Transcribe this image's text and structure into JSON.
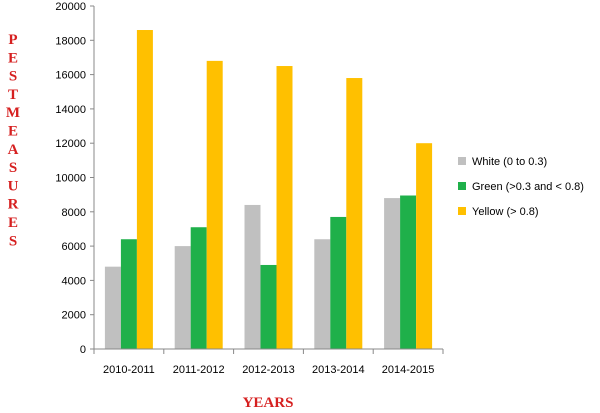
{
  "chart_data": {
    "type": "bar",
    "title": "",
    "xlabel": "YEARS",
    "ylabel": "PESTMEASURES",
    "categories": [
      "2010-2011",
      "2011-2012",
      "2012-2013",
      "2013-2014",
      "2014-2015"
    ],
    "series": [
      {
        "name": "White  (0 to  0.3)",
        "color": "#c0c0c0",
        "values": [
          4800,
          6000,
          8400,
          6400,
          8800
        ]
      },
      {
        "name": "Green (>0.3 and < 0.8)",
        "color": "#1fb04a",
        "values": [
          6400,
          7100,
          4900,
          7700,
          8950
        ]
      },
      {
        "name": "Yellow (> 0.8)",
        "color": "#ffc000",
        "values": [
          18600,
          16800,
          16500,
          15800,
          12000
        ]
      }
    ],
    "ylim": [
      0,
      20000
    ],
    "yticks": [
      0,
      2000,
      4000,
      6000,
      8000,
      10000,
      12000,
      14000,
      16000,
      18000,
      20000
    ],
    "legend_position": "right",
    "grid": false
  }
}
